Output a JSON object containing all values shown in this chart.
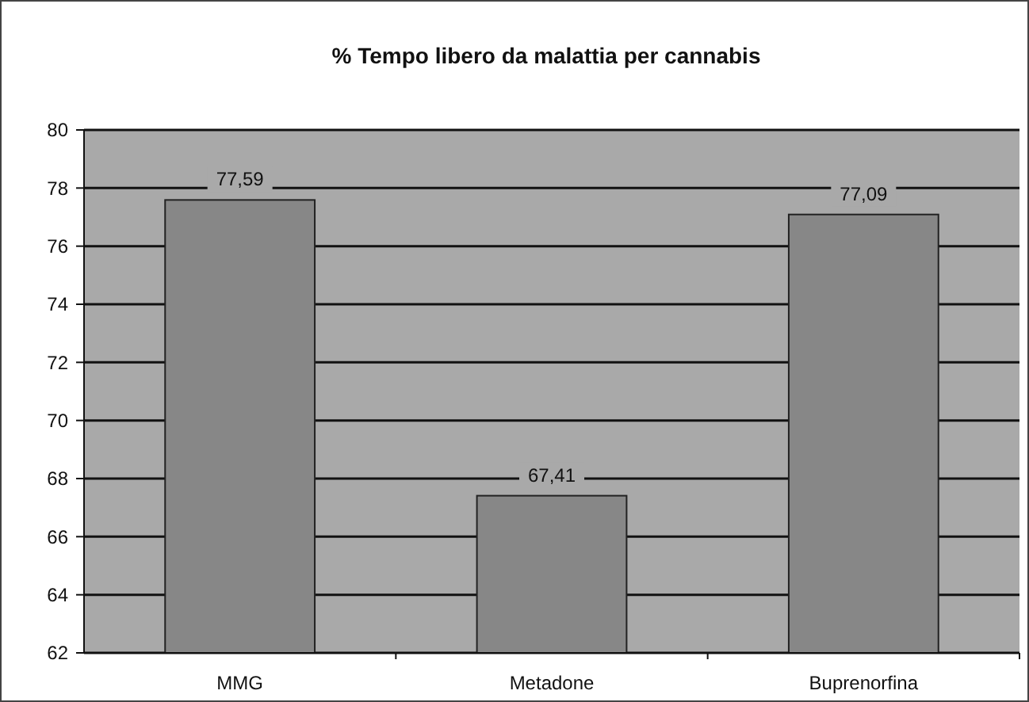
{
  "chart_data": {
    "type": "bar",
    "title": "%  Tempo libero da malattia per cannabis",
    "categories": [
      "MMG",
      "Metadone",
      "Buprenorfina"
    ],
    "values": [
      77.59,
      67.41,
      77.09
    ],
    "value_labels": [
      "77,59",
      "67,41",
      "77,09"
    ],
    "color": "#878787",
    "ylim": [
      62,
      80
    ],
    "yticks": [
      62,
      64,
      66,
      68,
      70,
      72,
      74,
      76,
      78,
      80
    ],
    "grid": "y"
  }
}
